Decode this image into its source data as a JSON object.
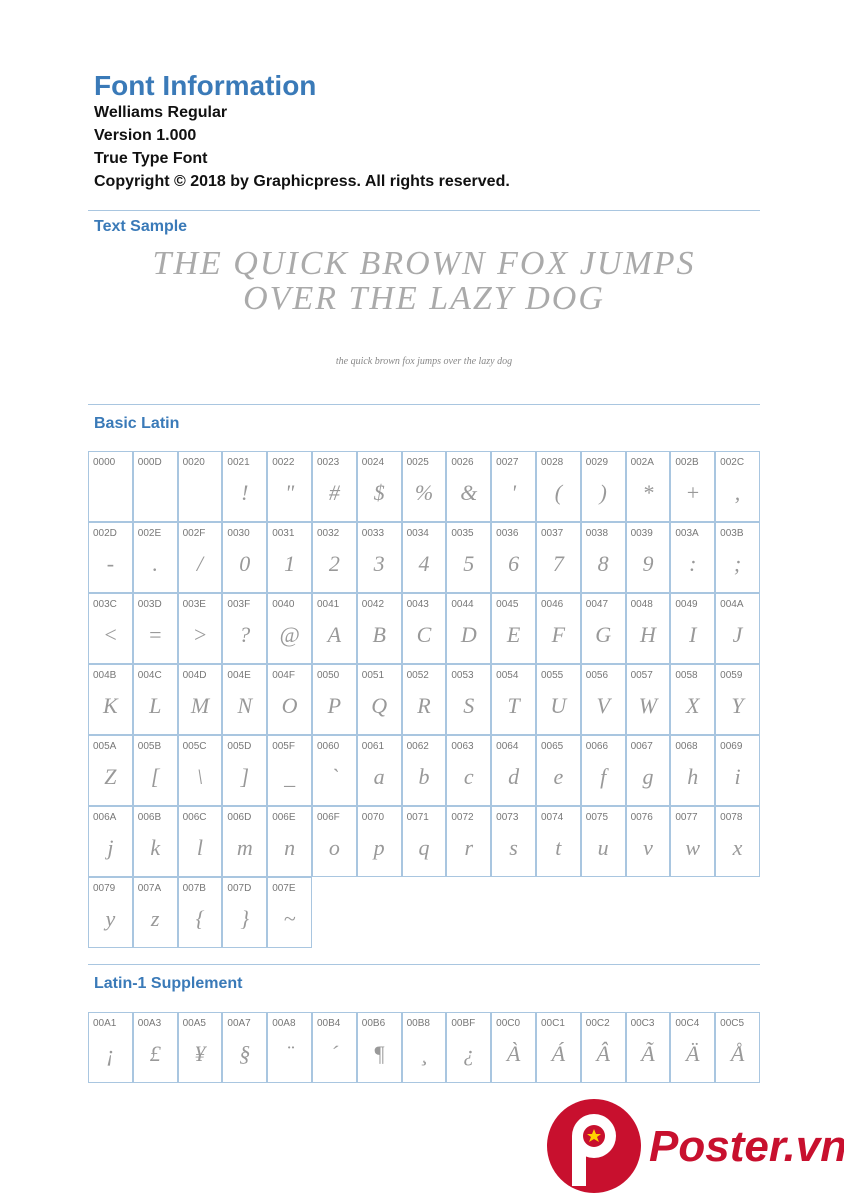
{
  "header": {
    "title": "Font Information",
    "lines": [
      "Welliams Regular",
      "Version 1.000",
      "True Type Font",
      "Copyright © 2018 by Graphicpress. All rights reserved."
    ]
  },
  "text_sample": {
    "heading": "Text Sample",
    "large": [
      "THE QUICK BROWN FOX JUMPS",
      "OVER THE LAZY DOG"
    ],
    "small": "the quick brown fox jumps over the lazy dog"
  },
  "basic_latin": {
    "heading": "Basic Latin",
    "cells": [
      [
        "0000"
      ],
      [
        "000D"
      ],
      [
        "0020"
      ],
      [
        "0021",
        "!"
      ],
      [
        "0022",
        "\""
      ],
      [
        "0023",
        "#"
      ],
      [
        "0024",
        "$"
      ],
      [
        "0025",
        "%"
      ],
      [
        "0026",
        "&"
      ],
      [
        "0027",
        "'"
      ],
      [
        "0028",
        "("
      ],
      [
        "0029",
        ")"
      ],
      [
        "002A",
        "*"
      ],
      [
        "002B",
        "+"
      ],
      [
        "002C",
        ","
      ],
      [
        "002D",
        "-"
      ],
      [
        "002E",
        "."
      ],
      [
        "002F",
        "/"
      ],
      [
        "0030",
        "0"
      ],
      [
        "0031",
        "1"
      ],
      [
        "0032",
        "2"
      ],
      [
        "0033",
        "3"
      ],
      [
        "0034",
        "4"
      ],
      [
        "0035",
        "5"
      ],
      [
        "0036",
        "6"
      ],
      [
        "0037",
        "7"
      ],
      [
        "0038",
        "8"
      ],
      [
        "0039",
        "9"
      ],
      [
        "003A",
        ":"
      ],
      [
        "003B",
        ";"
      ],
      [
        "003C",
        "<"
      ],
      [
        "003D",
        "="
      ],
      [
        "003E",
        ">"
      ],
      [
        "003F",
        "?"
      ],
      [
        "0040",
        "@"
      ],
      [
        "0041",
        "A"
      ],
      [
        "0042",
        "B"
      ],
      [
        "0043",
        "C"
      ],
      [
        "0044",
        "D"
      ],
      [
        "0045",
        "E"
      ],
      [
        "0046",
        "F"
      ],
      [
        "0047",
        "G"
      ],
      [
        "0048",
        "H"
      ],
      [
        "0049",
        "I"
      ],
      [
        "004A",
        "J"
      ],
      [
        "004B",
        "K"
      ],
      [
        "004C",
        "L"
      ],
      [
        "004D",
        "M"
      ],
      [
        "004E",
        "N"
      ],
      [
        "004F",
        "O"
      ],
      [
        "0050",
        "P"
      ],
      [
        "0051",
        "Q"
      ],
      [
        "0052",
        "R"
      ],
      [
        "0053",
        "S"
      ],
      [
        "0054",
        "T"
      ],
      [
        "0055",
        "U"
      ],
      [
        "0056",
        "V"
      ],
      [
        "0057",
        "W"
      ],
      [
        "0058",
        "X"
      ],
      [
        "0059",
        "Y"
      ],
      [
        "005A",
        "Z"
      ],
      [
        "005B",
        "["
      ],
      [
        "005C",
        "\\"
      ],
      [
        "005D",
        "]"
      ],
      [
        "005F",
        "_"
      ],
      [
        "0060",
        "`"
      ],
      [
        "0061",
        "a"
      ],
      [
        "0062",
        "b"
      ],
      [
        "0063",
        "c"
      ],
      [
        "0064",
        "d"
      ],
      [
        "0065",
        "e"
      ],
      [
        "0066",
        "f"
      ],
      [
        "0067",
        "g"
      ],
      [
        "0068",
        "h"
      ],
      [
        "0069",
        "i"
      ],
      [
        "006A",
        "j"
      ],
      [
        "006B",
        "k"
      ],
      [
        "006C",
        "l"
      ],
      [
        "006D",
        "m"
      ],
      [
        "006E",
        "n"
      ],
      [
        "006F",
        "o"
      ],
      [
        "0070",
        "p"
      ],
      [
        "0071",
        "q"
      ],
      [
        "0072",
        "r"
      ],
      [
        "0073",
        "s"
      ],
      [
        "0074",
        "t"
      ],
      [
        "0075",
        "u"
      ],
      [
        "0076",
        "v"
      ],
      [
        "0077",
        "w"
      ],
      [
        "0078",
        "x"
      ],
      [
        "0079",
        "y"
      ],
      [
        "007A",
        "z"
      ],
      [
        "007B",
        "{"
      ],
      [
        "007D",
        "}"
      ],
      [
        "007E",
        "~"
      ]
    ]
  },
  "latin1": {
    "heading": "Latin-1 Supplement",
    "cells": [
      [
        "00A1",
        "¡"
      ],
      [
        "00A3",
        "£"
      ],
      [
        "00A5",
        "¥"
      ],
      [
        "00A7",
        "§"
      ],
      [
        "00A8",
        "¨"
      ],
      [
        "00B4",
        "´"
      ],
      [
        "00B6",
        "¶"
      ],
      [
        "00B8",
        "¸"
      ],
      [
        "00BF",
        "¿"
      ],
      [
        "00C0",
        "À"
      ],
      [
        "00C1",
        "Á"
      ],
      [
        "00C2",
        "Â"
      ],
      [
        "00C3",
        "Ã"
      ],
      [
        "00C4",
        "Ä"
      ],
      [
        "00C5",
        "Å"
      ]
    ]
  },
  "watermark": "Poster.vn"
}
